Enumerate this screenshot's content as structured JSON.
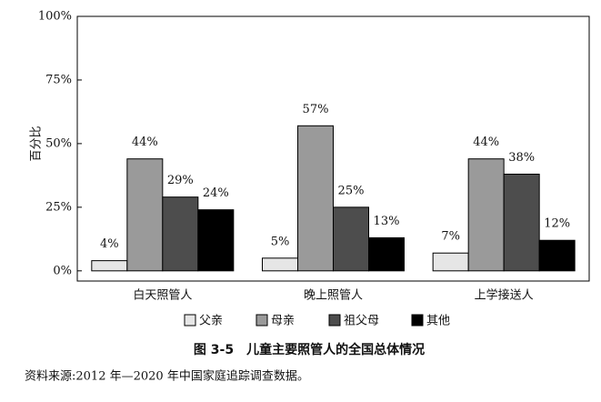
{
  "chart_data": {
    "type": "bar",
    "title": "图 3-5　儿童主要照管人的全国总体情况",
    "note": "资料来源:2012 年—2020 年中国家庭追踪调查数据。",
    "ylabel": "百分比",
    "categories": [
      "白天照管人",
      "晚上照管人",
      "上学接送人"
    ],
    "series": [
      {
        "name": "父亲",
        "color": "#e6e6e6",
        "values": [
          4,
          5,
          7
        ],
        "value_labels": [
          "4%",
          "5%",
          "7%"
        ]
      },
      {
        "name": "母亲",
        "color": "#9a9a9a",
        "values": [
          44,
          57,
          44
        ],
        "value_labels": [
          "44%",
          "57%",
          "44%"
        ]
      },
      {
        "name": "祖父母",
        "color": "#4d4d4d",
        "values": [
          29,
          25,
          38
        ],
        "value_labels": [
          "29%",
          "25%",
          "38%"
        ]
      },
      {
        "name": "其他",
        "color": "#000000",
        "values": [
          24,
          13,
          12
        ],
        "value_labels": [
          "24%",
          "13%",
          "12%"
        ]
      }
    ],
    "ylim": [
      -4,
      100
    ],
    "yticks": [
      {
        "value": 0,
        "label": "0%"
      },
      {
        "value": 25,
        "label": "25%"
      },
      {
        "value": 50,
        "label": "50%"
      },
      {
        "value": 75,
        "label": "75%"
      },
      {
        "value": 100,
        "label": "100%"
      }
    ],
    "legend": "bottom"
  }
}
